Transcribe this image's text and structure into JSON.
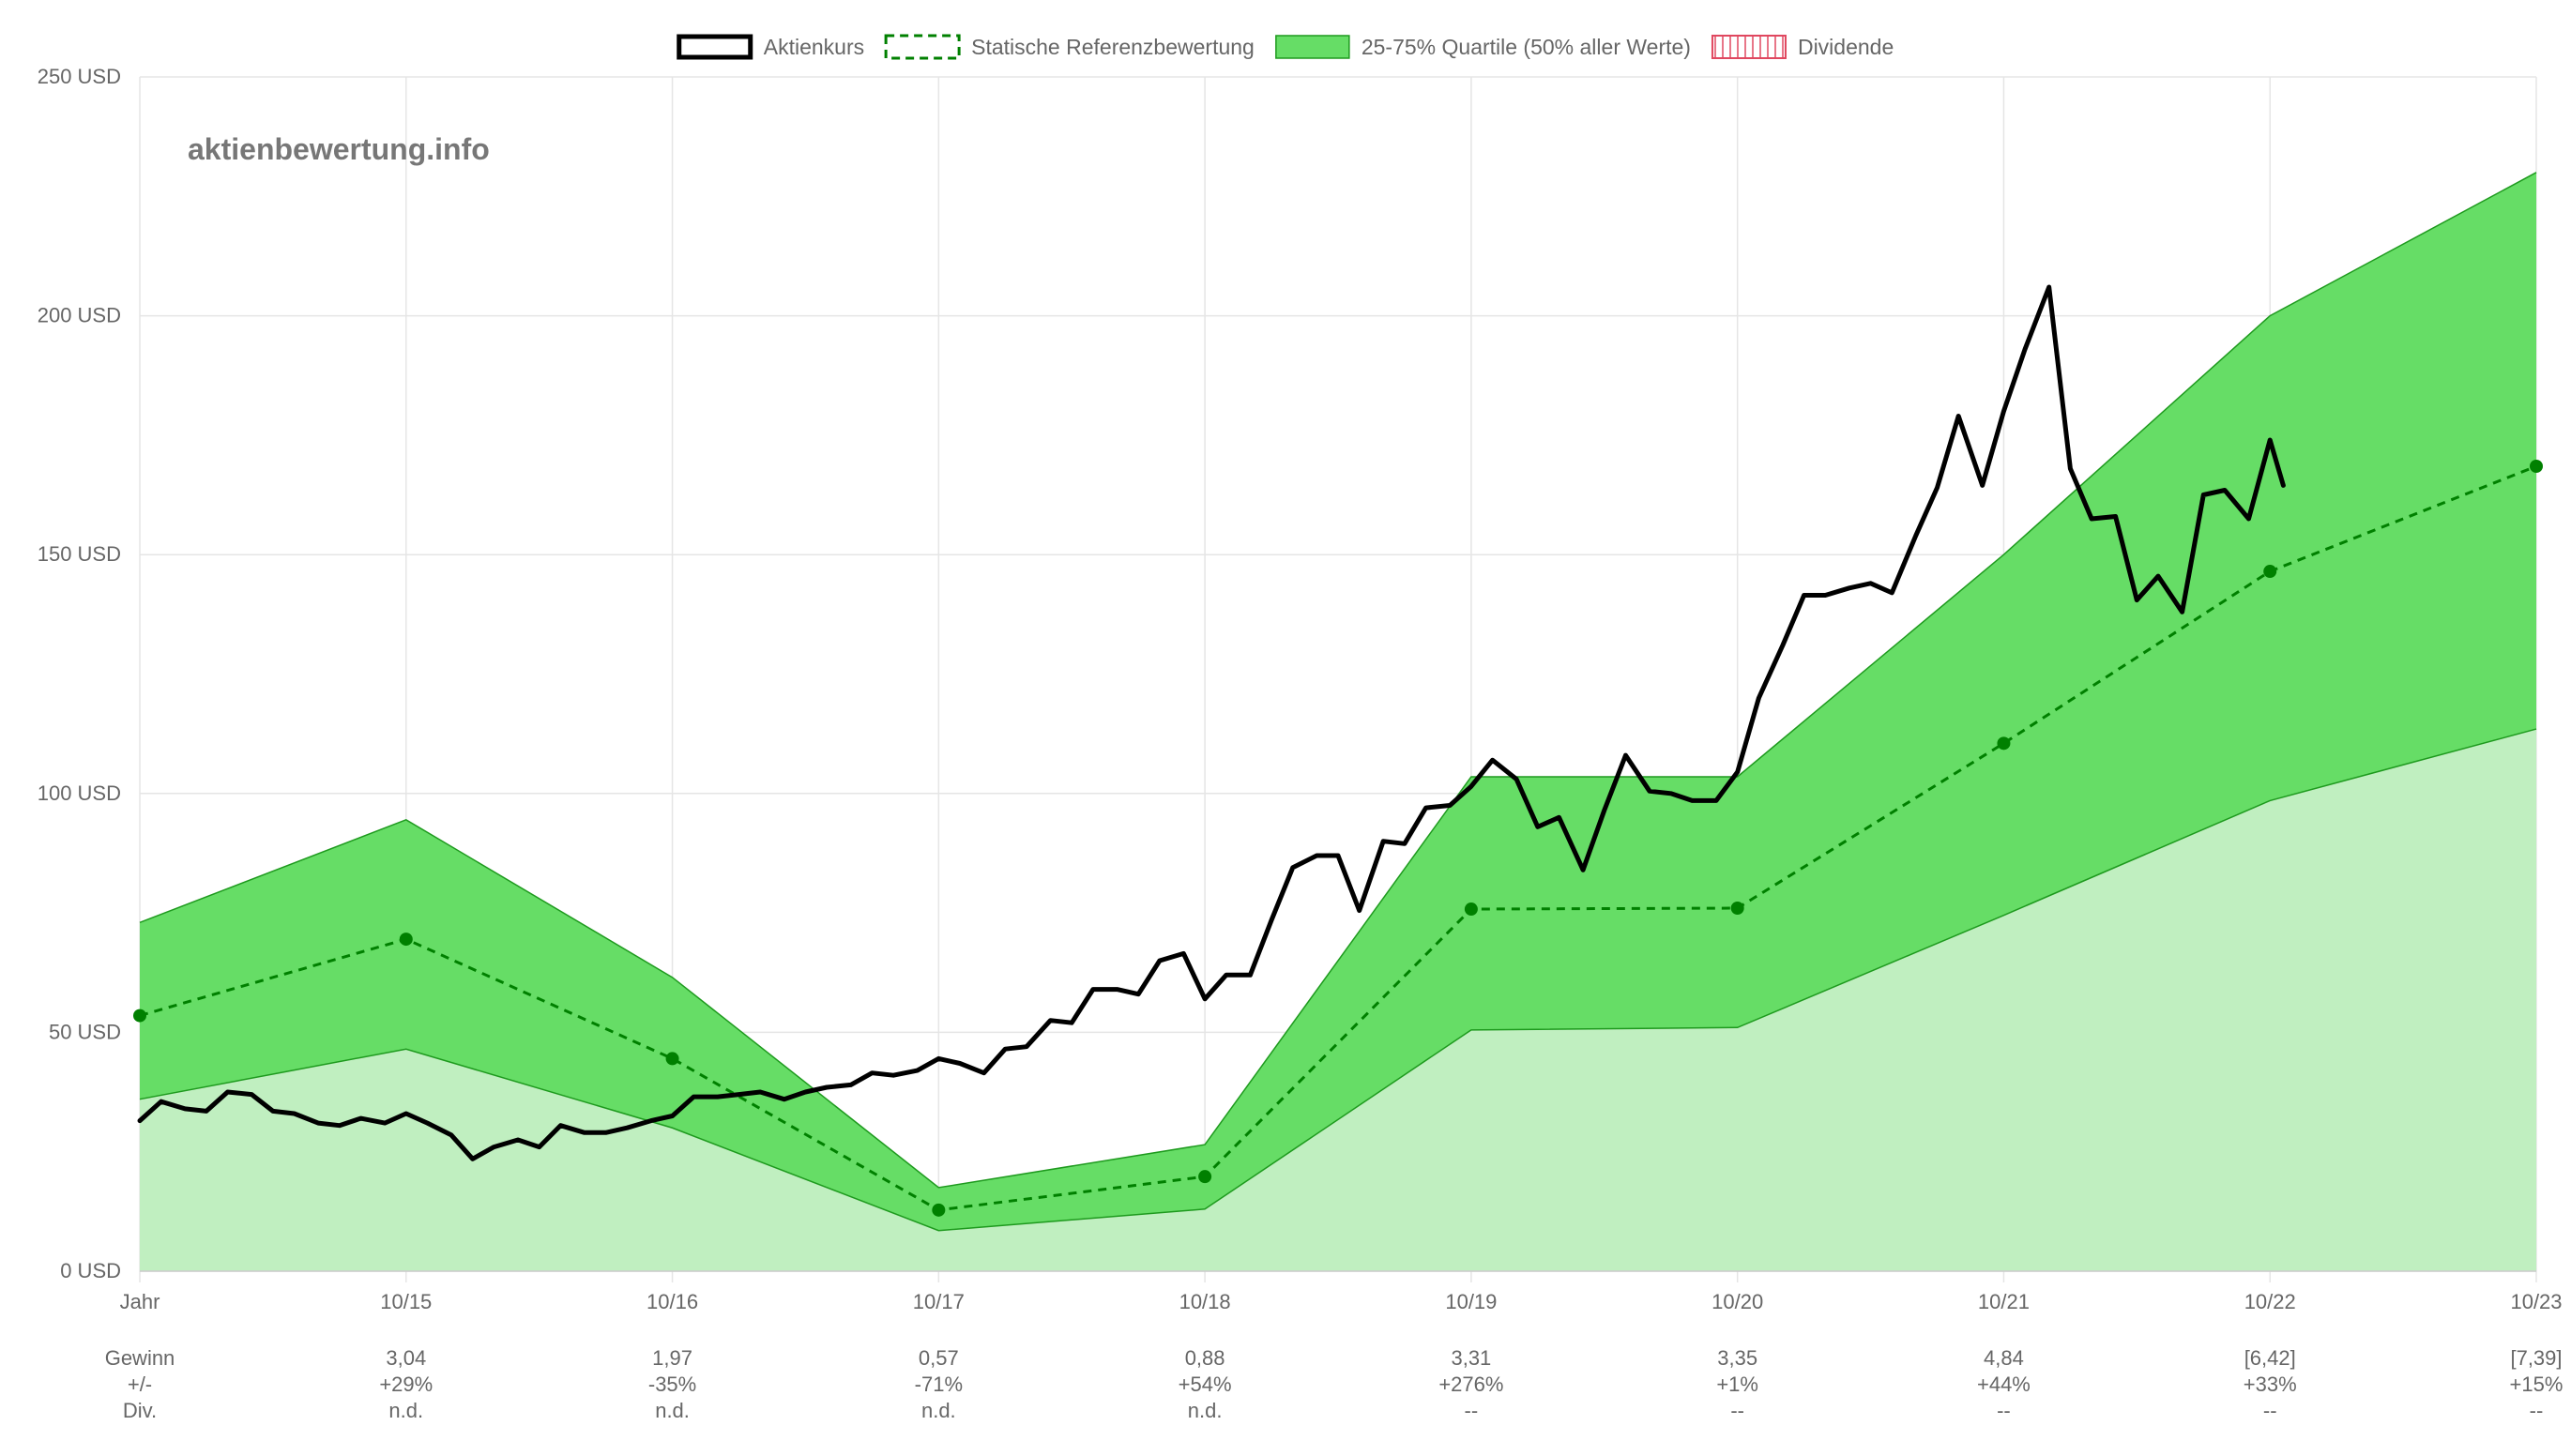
{
  "watermark": "aktienbewertung.info",
  "colors": {
    "price_line": "#000000",
    "reference_line": "#008000",
    "quartile_fill": "#66dd66",
    "quartile_stroke": "#1e9a1e",
    "lower_fill": "#c0efc0",
    "dividend_stroke": "#e0475f",
    "grid": "#e5e5e5",
    "axis_text": "#666666"
  },
  "chart_data": {
    "type": "line",
    "legend": [
      {
        "label": "Aktienkurs",
        "style": "solid-black"
      },
      {
        "label": "Statische Referenzbewertung",
        "style": "dashed-green"
      },
      {
        "label": "25-75% Quartile (50% aller Werte)",
        "style": "filled-green"
      },
      {
        "label": "Dividende",
        "style": "hatched-red"
      }
    ],
    "legend_position": "top-center",
    "grid": true,
    "x_categories": [
      "Jahr",
      "10/15",
      "10/16",
      "10/17",
      "10/18",
      "10/19",
      "10/20",
      "10/21",
      "10/22",
      "10/23"
    ],
    "y_ticks": [
      "0 USD",
      "50 USD",
      "100 USD",
      "150 USD",
      "200 USD",
      "250 USD"
    ],
    "ylim": [
      0,
      250
    ],
    "series": [
      {
        "name": "Statische Referenzbewertung",
        "x": [
          0,
          1,
          2,
          3,
          4,
          5,
          6,
          7,
          8,
          9
        ],
        "values": [
          53.5,
          69.5,
          44.5,
          12.8,
          19.8,
          75.8,
          76,
          110.5,
          146.5,
          168.5
        ]
      },
      {
        "name": "25-75% Quartile (50% aller Werte)",
        "x": [
          0,
          1,
          2,
          3,
          4,
          5,
          6,
          7,
          8,
          9
        ],
        "upper": [
          73,
          94.5,
          61.5,
          17.5,
          26.5,
          103.5,
          103.5,
          150,
          200,
          230
        ],
        "lower": [
          36,
          46.5,
          30,
          8.5,
          13,
          50.5,
          51,
          74.5,
          98.5,
          113.5
        ]
      },
      {
        "name": "Aktienkurs",
        "x": [
          0,
          0.08,
          0.17,
          0.25,
          0.33,
          0.42,
          0.5,
          0.58,
          0.67,
          0.75,
          0.83,
          0.92,
          1.0,
          1.08,
          1.17,
          1.25,
          1.33,
          1.42,
          1.5,
          1.58,
          1.67,
          1.75,
          1.83,
          1.92,
          2.0,
          2.08,
          2.17,
          2.25,
          2.33,
          2.42,
          2.5,
          2.58,
          2.67,
          2.75,
          2.83,
          2.92,
          3.0,
          3.08,
          3.17,
          3.25,
          3.33,
          3.42,
          3.5,
          3.58,
          3.67,
          3.75,
          3.83,
          3.92,
          4.0,
          4.08,
          4.17,
          4.25,
          4.33,
          4.42,
          4.5,
          4.58,
          4.67,
          4.75,
          4.83,
          4.92,
          5.0,
          5.08,
          5.17,
          5.25,
          5.33,
          5.42,
          5.5,
          5.58,
          5.67,
          5.75,
          5.83,
          5.92,
          6.0,
          6.08,
          6.17,
          6.25,
          6.33,
          6.42,
          6.5,
          6.58,
          6.67,
          6.75,
          6.83,
          6.92,
          7.0,
          7.08,
          7.17,
          7.25,
          7.33,
          7.42,
          7.5,
          7.58,
          7.67,
          7.75,
          7.83,
          7.92,
          8.0,
          8.05
        ],
        "values": [
          31.5,
          35.5,
          34,
          33.5,
          37.5,
          37,
          33.5,
          33,
          31,
          30.5,
          32,
          31,
          33,
          31,
          28.5,
          23.5,
          26,
          27.5,
          26,
          30.5,
          29,
          29,
          30,
          31.5,
          32.5,
          36.5,
          36.5,
          37,
          37.5,
          36,
          37.5,
          38.5,
          39,
          41.5,
          41,
          42,
          44.5,
          43.5,
          41.5,
          46.5,
          47,
          52.5,
          52,
          59,
          59,
          58,
          65,
          66.5,
          57,
          62,
          62,
          73.5,
          84.5,
          87,
          87,
          75.5,
          90,
          89.5,
          97,
          97.5,
          101.5,
          107,
          103,
          93,
          95,
          84,
          96.5,
          108,
          100.5,
          100,
          98.5,
          98.5,
          104.5,
          120,
          131,
          141.5,
          141.5,
          143,
          144,
          142,
          154,
          164,
          179,
          164.5,
          180,
          193,
          206,
          168,
          157.5,
          158,
          140.5,
          145.5,
          138,
          162.5,
          163.5,
          157.5,
          174,
          164.5
        ]
      },
      {
        "name": "Dividende",
        "values": []
      }
    ],
    "table": {
      "rows": [
        {
          "label": "Gewinn",
          "values": [
            "3,04",
            "1,97",
            "0,57",
            "0,88",
            "3,31",
            "3,35",
            "4,84",
            "[6,42]",
            "[7,39]"
          ]
        },
        {
          "label": "+/-",
          "values": [
            "+29%",
            "-35%",
            "-71%",
            "+54%",
            "+276%",
            "+1%",
            "+44%",
            "+33%",
            "+15%"
          ]
        },
        {
          "label": "Div.",
          "values": [
            "n.d.",
            "n.d.",
            "n.d.",
            "n.d.",
            "--",
            "--",
            "--",
            "--",
            "--"
          ]
        }
      ]
    }
  }
}
